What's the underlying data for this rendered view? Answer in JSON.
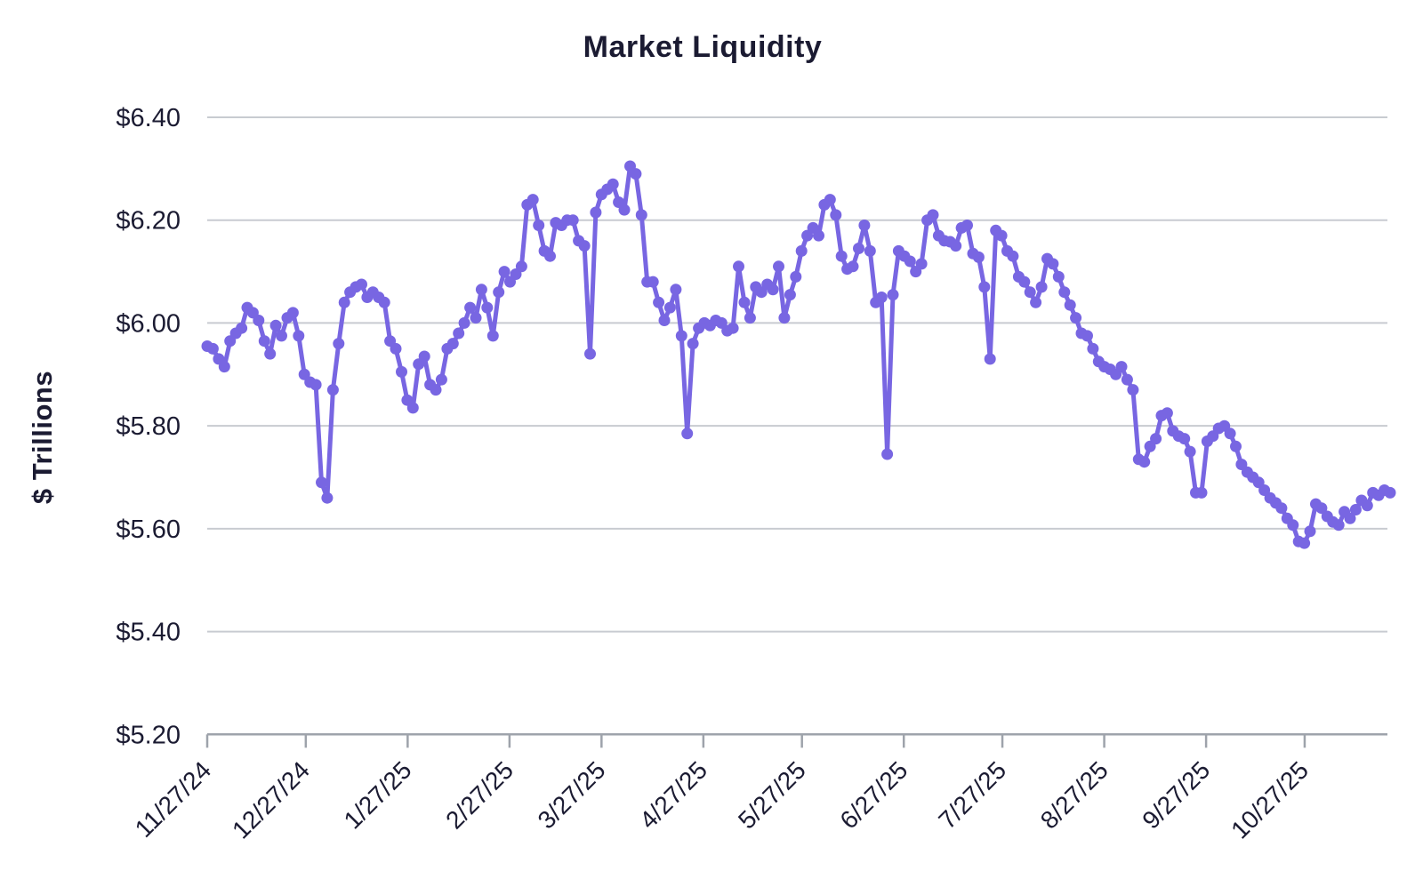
{
  "chart_data": {
    "type": "line",
    "title": "Market Liquidity",
    "ylabel": "$ Trillions",
    "xlabel": "",
    "unit": "$ Trillions",
    "grid": true,
    "legend": false,
    "y_axis": {
      "min": 5.2,
      "max": 6.4,
      "tick_step": 0.2,
      "tick_labels": [
        "$6.40",
        "$6.20",
        "$6.00",
        "$5.80",
        "$5.60",
        "$5.40",
        "$5.20"
      ],
      "tick_values": [
        6.4,
        6.2,
        6.0,
        5.8,
        5.6,
        5.4,
        5.2
      ]
    },
    "x_axis": {
      "start_date": "11/27/24",
      "end_day_offset": 360,
      "tick_labels": [
        "11/27/24",
        "12/27/24",
        "1/27/25",
        "2/27/25",
        "3/27/25",
        "4/27/25",
        "5/27/25",
        "6/27/25",
        "7/27/25",
        "8/27/25",
        "9/27/25",
        "10/27/25"
      ],
      "tick_day_offsets": [
        0,
        30,
        61,
        92,
        120,
        151,
        181,
        212,
        242,
        273,
        304,
        334
      ],
      "label_rotation_deg": -45
    },
    "series": [
      {
        "name": "Market Liquidity",
        "color": "#7866E2",
        "marker_radius": 6.5,
        "line_width": 5,
        "values": [
          5.955,
          5.95,
          5.93,
          5.915,
          5.965,
          5.98,
          5.99,
          6.03,
          6.02,
          6.005,
          5.965,
          5.94,
          5.995,
          5.975,
          6.01,
          6.02,
          5.975,
          5.9,
          5.885,
          5.88,
          5.69,
          5.66,
          5.87,
          5.96,
          6.04,
          6.06,
          6.07,
          6.075,
          6.05,
          6.06,
          6.05,
          6.04,
          5.965,
          5.95,
          5.905,
          5.85,
          5.835,
          5.92,
          5.935,
          5.88,
          5.87,
          5.89,
          5.95,
          5.96,
          5.98,
          6.0,
          6.03,
          6.01,
          6.065,
          6.03,
          5.975,
          6.06,
          6.1,
          6.08,
          6.095,
          6.11,
          6.23,
          6.24,
          6.19,
          6.14,
          6.13,
          6.195,
          6.19,
          6.2,
          6.2,
          6.16,
          6.15,
          5.94,
          6.215,
          6.25,
          6.26,
          6.27,
          6.235,
          6.22,
          6.305,
          6.29,
          6.21,
          6.08,
          6.08,
          6.04,
          6.005,
          6.03,
          6.065,
          5.975,
          5.785,
          5.96,
          5.99,
          6.0,
          5.995,
          6.005,
          6.0,
          5.985,
          5.99,
          6.11,
          6.04,
          6.01,
          6.07,
          6.06,
          6.075,
          6.065,
          6.11,
          6.01,
          6.055,
          6.09,
          6.14,
          6.17,
          6.185,
          6.17,
          6.23,
          6.24,
          6.21,
          6.13,
          6.105,
          6.11,
          6.145,
          6.19,
          6.14,
          6.04,
          6.05,
          5.745,
          6.055,
          6.14,
          6.13,
          6.12,
          6.1,
          6.115,
          6.2,
          6.21,
          6.17,
          6.16,
          6.158,
          6.15,
          6.185,
          6.19,
          6.135,
          6.128,
          6.07,
          5.93,
          6.18,
          6.17,
          6.14,
          6.13,
          6.09,
          6.08,
          6.06,
          6.04,
          6.07,
          6.125,
          6.115,
          6.09,
          6.06,
          6.035,
          6.01,
          5.98,
          5.975,
          5.95,
          5.925,
          5.915,
          5.91,
          5.9,
          5.915,
          5.89,
          5.87,
          5.735,
          5.73,
          5.76,
          5.775,
          5.82,
          5.825,
          5.79,
          5.78,
          5.775,
          5.75,
          5.67,
          5.67,
          5.77,
          5.78,
          5.795,
          5.8,
          5.785,
          5.76,
          5.725,
          5.71,
          5.7,
          5.69,
          5.675,
          5.66,
          5.65,
          5.64,
          5.62,
          5.607,
          5.575,
          5.572,
          5.595,
          5.648,
          5.64,
          5.624,
          5.613,
          5.607,
          5.633,
          5.62,
          5.637,
          5.655,
          5.645,
          5.67,
          5.665,
          5.675,
          5.67
        ]
      }
    ]
  },
  "colors": {
    "background": "#FFFFFF",
    "accent": "#7866E2",
    "text": "#1B1B32",
    "gridline": "#C8CBD1",
    "axis": "#9EA3AB"
  }
}
